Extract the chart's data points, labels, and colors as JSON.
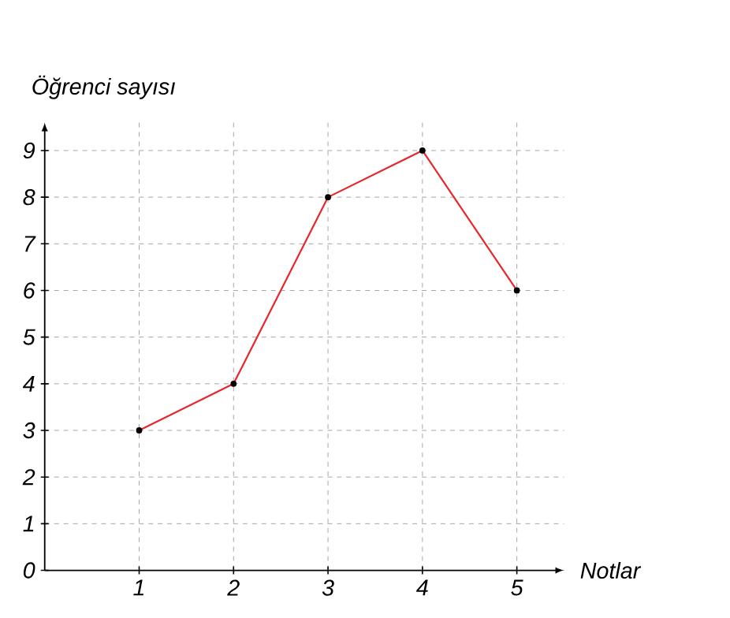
{
  "chart_data": {
    "type": "line",
    "xlabel": "Notlar",
    "ylabel": "Öğrenci sayısı",
    "x": [
      1,
      2,
      3,
      4,
      5
    ],
    "series": [
      {
        "color": "#e8262c",
        "values": [
          3,
          4,
          8,
          9,
          6
        ]
      }
    ],
    "xlim": [
      0,
      5.5
    ],
    "ylim": [
      0,
      9.6
    ],
    "xticks": [
      1,
      2,
      3,
      4,
      5
    ],
    "yticks": [
      0,
      1,
      2,
      3,
      4,
      5,
      6,
      7,
      8,
      9
    ],
    "grid": true,
    "marker": "circle",
    "line_style": "solid"
  }
}
